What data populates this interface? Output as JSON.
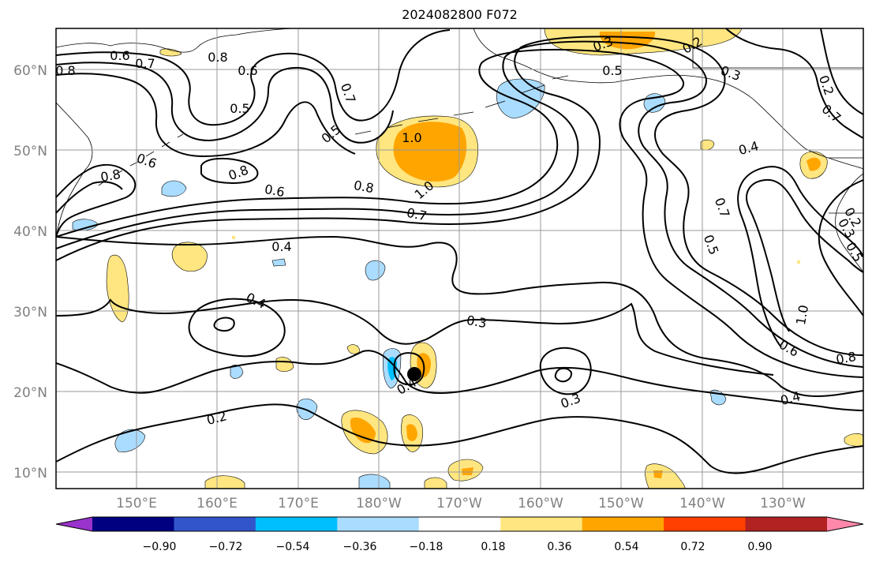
{
  "title": "2024082800 F072",
  "lat_labels": [
    "60°N",
    "50°N",
    "40°N",
    "30°N",
    "20°N",
    "10°N"
  ],
  "lon_labels": [
    "150°E",
    "160°E",
    "170°E",
    "180°W",
    "170°W",
    "160°W",
    "150°W",
    "140°W",
    "130°W"
  ],
  "colorbar": {
    "ticks": [
      "−0.90",
      "−0.72",
      "−0.54",
      "−0.36",
      "−0.18",
      "0.18",
      "0.36",
      "0.54",
      "0.72",
      "0.90"
    ],
    "colors": [
      "#9933cc",
      "#000080",
      "#3355cc",
      "#00bfff",
      "#aadcff",
      "#ffffff",
      "#ffe680",
      "#ffa500",
      "#ff4000",
      "#b22222",
      "#ff88aa"
    ]
  },
  "contour_labels": [
    "0.8",
    "0.6",
    "0.7",
    "0.8",
    "0.6",
    "0.5",
    "0.7",
    "0.5",
    "1.0",
    "0.3",
    "0.2",
    "0.3",
    "0.5",
    "0.2",
    "0.4",
    "0.6",
    "0.8",
    "0.6",
    "0.8",
    "1.0",
    "0.7",
    "0.8",
    "0.7",
    "0.5",
    "0.2",
    "0.3",
    "1.0",
    "0.4",
    "0.4",
    "0.3",
    "0.4",
    "0.2",
    "0.3",
    "0.6",
    "0.8",
    "0.4",
    "0.5",
    "0.7"
  ],
  "colors": {
    "shade_yellow": "#ffe680",
    "shade_orange": "#ffa500",
    "shade_lightblue": "#aadcff",
    "shade_cyan": "#00bfff",
    "grid": "#999999",
    "contour": "#000000"
  }
}
